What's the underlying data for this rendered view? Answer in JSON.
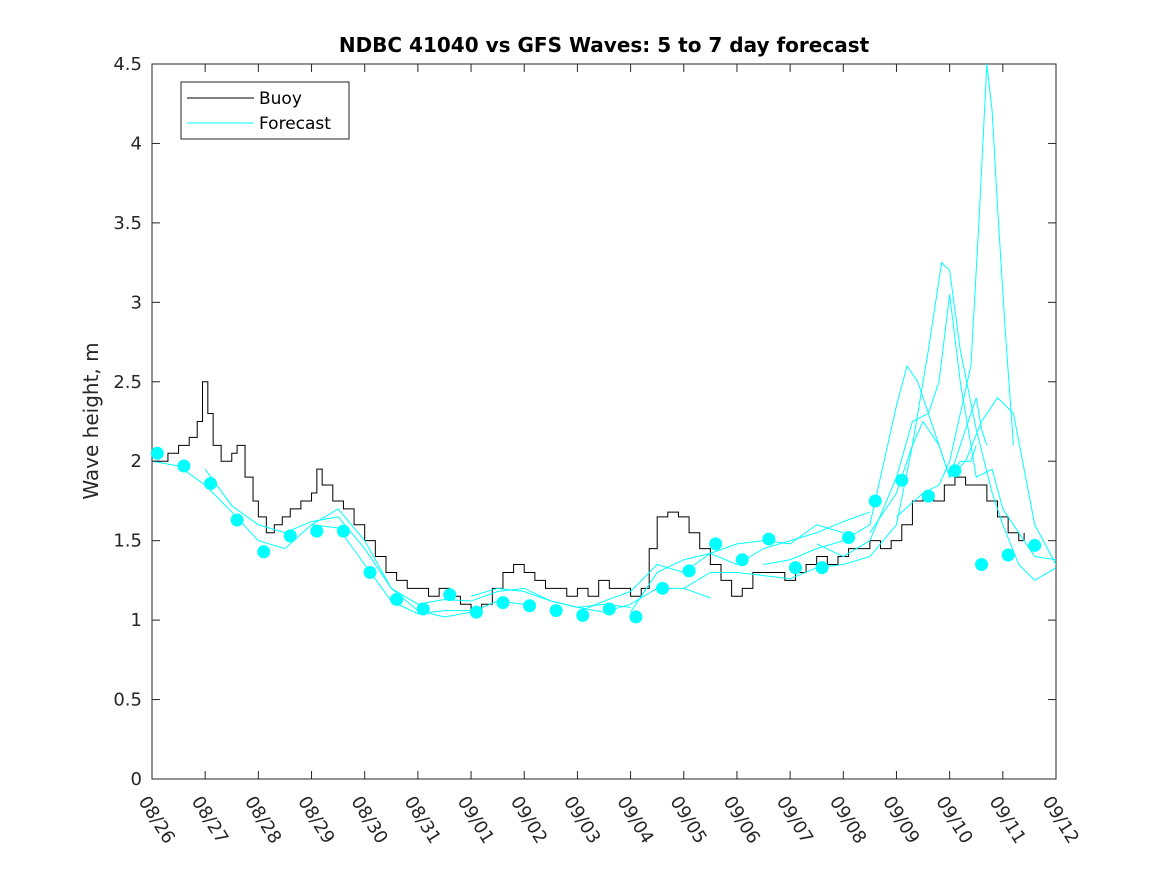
{
  "chart_data": {
    "type": "line",
    "title": "NDBC 41040 vs GFS Waves: 5 to 7 day forecast",
    "xlabel": "",
    "ylabel": "Wave height, m",
    "xlim": [
      0,
      17
    ],
    "ylim": [
      0,
      4.5
    ],
    "x_tick_labels": [
      "08/26",
      "08/27",
      "08/28",
      "08/29",
      "08/30",
      "08/31",
      "09/01",
      "09/02",
      "09/03",
      "09/04",
      "09/05",
      "09/06",
      "09/07",
      "09/08",
      "09/09",
      "09/10",
      "09/11",
      "09/12"
    ],
    "y_ticks": [
      0,
      0.5,
      1,
      1.5,
      2,
      2.5,
      3,
      3.5,
      4,
      4.5
    ],
    "y_tick_labels": [
      "0",
      "0.5",
      "1",
      "1.5",
      "2",
      "2.5",
      "3",
      "3.5",
      "4",
      "4.5"
    ],
    "legend": {
      "position": "top-left",
      "entries": [
        "Buoy",
        "Forecast"
      ]
    },
    "colors": {
      "buoy": "#000000",
      "forecast": "#00FFFF",
      "axis": "#262626"
    },
    "series": [
      {
        "name": "Buoy",
        "type": "line",
        "points": [
          [
            0,
            2.0
          ],
          [
            0.3,
            2.05
          ],
          [
            0.5,
            2.1
          ],
          [
            0.7,
            2.15
          ],
          [
            0.85,
            2.25
          ],
          [
            0.95,
            2.5
          ],
          [
            1.05,
            2.3
          ],
          [
            1.15,
            2.1
          ],
          [
            1.3,
            2.0
          ],
          [
            1.5,
            2.05
          ],
          [
            1.6,
            2.1
          ],
          [
            1.75,
            1.9
          ],
          [
            1.9,
            1.75
          ],
          [
            2.0,
            1.65
          ],
          [
            2.15,
            1.55
          ],
          [
            2.3,
            1.6
          ],
          [
            2.45,
            1.65
          ],
          [
            2.6,
            1.7
          ],
          [
            2.8,
            1.75
          ],
          [
            3.0,
            1.8
          ],
          [
            3.1,
            1.95
          ],
          [
            3.2,
            1.85
          ],
          [
            3.4,
            1.75
          ],
          [
            3.6,
            1.7
          ],
          [
            3.8,
            1.6
          ],
          [
            4.0,
            1.5
          ],
          [
            4.2,
            1.4
          ],
          [
            4.4,
            1.3
          ],
          [
            4.6,
            1.25
          ],
          [
            4.8,
            1.2
          ],
          [
            5.0,
            1.2
          ],
          [
            5.2,
            1.15
          ],
          [
            5.4,
            1.2
          ],
          [
            5.6,
            1.15
          ],
          [
            5.8,
            1.1
          ],
          [
            6.0,
            1.05
          ],
          [
            6.2,
            1.1
          ],
          [
            6.4,
            1.2
          ],
          [
            6.6,
            1.3
          ],
          [
            6.8,
            1.35
          ],
          [
            7.0,
            1.3
          ],
          [
            7.2,
            1.25
          ],
          [
            7.4,
            1.2
          ],
          [
            7.6,
            1.2
          ],
          [
            7.8,
            1.15
          ],
          [
            8.0,
            1.2
          ],
          [
            8.2,
            1.15
          ],
          [
            8.4,
            1.25
          ],
          [
            8.6,
            1.2
          ],
          [
            8.8,
            1.2
          ],
          [
            9.0,
            1.15
          ],
          [
            9.2,
            1.2
          ],
          [
            9.35,
            1.45
          ],
          [
            9.5,
            1.65
          ],
          [
            9.7,
            1.68
          ],
          [
            9.9,
            1.65
          ],
          [
            10.1,
            1.55
          ],
          [
            10.3,
            1.45
          ],
          [
            10.5,
            1.35
          ],
          [
            10.7,
            1.25
          ],
          [
            10.9,
            1.15
          ],
          [
            11.1,
            1.2
          ],
          [
            11.3,
            1.3
          ],
          [
            11.5,
            1.3
          ],
          [
            11.7,
            1.3
          ],
          [
            11.9,
            1.25
          ],
          [
            12.1,
            1.3
          ],
          [
            12.3,
            1.35
          ],
          [
            12.5,
            1.4
          ],
          [
            12.7,
            1.35
          ],
          [
            12.9,
            1.4
          ],
          [
            13.1,
            1.45
          ],
          [
            13.3,
            1.45
          ],
          [
            13.5,
            1.5
          ],
          [
            13.7,
            1.45
          ],
          [
            13.9,
            1.5
          ],
          [
            14.1,
            1.6
          ],
          [
            14.3,
            1.75
          ],
          [
            14.5,
            1.8
          ],
          [
            14.7,
            1.75
          ],
          [
            14.9,
            1.85
          ],
          [
            15.1,
            1.9
          ],
          [
            15.3,
            1.85
          ],
          [
            15.5,
            1.85
          ],
          [
            15.7,
            1.75
          ],
          [
            15.9,
            1.65
          ],
          [
            16.1,
            1.55
          ],
          [
            16.3,
            1.5
          ],
          [
            16.4,
            1.55
          ]
        ]
      },
      {
        "name": "Forecast",
        "type": "line",
        "points": [
          [
            0,
            2.0
          ],
          [
            0.5,
            1.97
          ],
          [
            1.0,
            1.85
          ],
          [
            1.5,
            1.68
          ],
          [
            2.0,
            1.5
          ],
          [
            2.5,
            1.45
          ],
          [
            3.0,
            1.6
          ],
          [
            3.5,
            1.58
          ],
          [
            4.0,
            1.35
          ],
          [
            4.5,
            1.12
          ],
          [
            5.0,
            1.04
          ],
          [
            5.5,
            1.06
          ],
          [
            6.0,
            1.06
          ]
        ]
      },
      {
        "name": "Forecast",
        "type": "line",
        "points": [
          [
            1.0,
            1.95
          ],
          [
            1.5,
            1.72
          ],
          [
            2.0,
            1.6
          ],
          [
            2.5,
            1.55
          ],
          [
            3.0,
            1.62
          ],
          [
            3.5,
            1.65
          ],
          [
            4.0,
            1.45
          ],
          [
            4.5,
            1.2
          ],
          [
            5.0,
            1.06
          ],
          [
            5.5,
            1.02
          ],
          [
            6.0,
            1.05
          ],
          [
            6.5,
            1.12
          ],
          [
            7.0,
            1.1
          ]
        ]
      },
      {
        "name": "Forecast",
        "type": "line",
        "points": [
          [
            3.0,
            1.6
          ],
          [
            3.5,
            1.7
          ],
          [
            4.0,
            1.5
          ],
          [
            4.5,
            1.2
          ],
          [
            5.0,
            1.1
          ],
          [
            5.5,
            1.13
          ],
          [
            6.0,
            1.12
          ],
          [
            6.5,
            1.18
          ],
          [
            7.0,
            1.2
          ],
          [
            7.5,
            1.12
          ],
          [
            8.0,
            1.08
          ],
          [
            8.5,
            1.1
          ],
          [
            9.0,
            1.08
          ]
        ]
      },
      {
        "name": "Forecast",
        "type": "line",
        "points": [
          [
            6.0,
            1.15
          ],
          [
            6.5,
            1.2
          ],
          [
            7.0,
            1.18
          ],
          [
            7.5,
            1.12
          ],
          [
            8.0,
            1.08
          ],
          [
            8.5,
            1.05
          ],
          [
            9.0,
            1.1
          ],
          [
            9.5,
            1.2
          ],
          [
            10.0,
            1.2
          ],
          [
            10.5,
            1.14
          ]
        ]
      },
      {
        "name": "Forecast",
        "type": "line",
        "points": [
          [
            8.0,
            1.05
          ],
          [
            8.5,
            1.12
          ],
          [
            9.0,
            1.18
          ],
          [
            9.5,
            1.35
          ],
          [
            10.0,
            1.3
          ],
          [
            10.5,
            1.42
          ],
          [
            11.0,
            1.48
          ],
          [
            11.5,
            1.5
          ],
          [
            12.0,
            1.48
          ],
          [
            12.5,
            1.6
          ],
          [
            13.0,
            1.55
          ]
        ]
      },
      {
        "name": "Forecast",
        "type": "line",
        "points": [
          [
            9.0,
            1.05
          ],
          [
            9.5,
            1.3
          ],
          [
            10.0,
            1.38
          ],
          [
            10.5,
            1.42
          ],
          [
            11.0,
            1.35
          ],
          [
            11.5,
            1.45
          ],
          [
            12.0,
            1.5
          ],
          [
            12.5,
            1.55
          ],
          [
            13.0,
            1.62
          ],
          [
            13.5,
            1.68
          ]
        ]
      },
      {
        "name": "Forecast",
        "type": "line",
        "points": [
          [
            10.0,
            1.2
          ],
          [
            10.5,
            1.3
          ],
          [
            11.0,
            1.3
          ],
          [
            11.5,
            1.28
          ],
          [
            12.0,
            1.26
          ],
          [
            12.5,
            1.33
          ],
          [
            13.0,
            1.35
          ],
          [
            13.5,
            1.4
          ],
          [
            14.0,
            1.6
          ],
          [
            14.3,
            2.1
          ],
          [
            14.5,
            2.25
          ],
          [
            14.8,
            2.1
          ],
          [
            15.0,
            1.9
          ],
          [
            15.2,
            2.0
          ],
          [
            15.4,
            2.0
          ],
          [
            15.5,
            2.1
          ]
        ]
      },
      {
        "name": "Forecast",
        "type": "line",
        "points": [
          [
            11.5,
            1.35
          ],
          [
            12.0,
            1.38
          ],
          [
            12.5,
            1.45
          ],
          [
            13.0,
            1.5
          ],
          [
            13.5,
            1.6
          ],
          [
            14.0,
            2.35
          ],
          [
            14.2,
            2.6
          ],
          [
            14.4,
            2.5
          ],
          [
            14.7,
            2.2
          ],
          [
            15.0,
            1.9
          ],
          [
            15.3,
            2.0
          ],
          [
            15.6,
            2.25
          ],
          [
            15.9,
            2.4
          ],
          [
            16.2,
            2.3
          ],
          [
            16.6,
            1.6
          ],
          [
            17.0,
            1.35
          ]
        ]
      },
      {
        "name": "Forecast",
        "type": "line",
        "points": [
          [
            12.5,
            1.48
          ],
          [
            13.0,
            1.4
          ],
          [
            13.5,
            1.5
          ],
          [
            14.0,
            1.9
          ],
          [
            14.3,
            2.25
          ],
          [
            14.6,
            2.3
          ],
          [
            14.8,
            2.5
          ],
          [
            15.0,
            3.05
          ],
          [
            15.2,
            2.5
          ],
          [
            15.5,
            1.9
          ],
          [
            15.8,
            1.95
          ],
          [
            16.0,
            1.7
          ],
          [
            16.3,
            1.55
          ],
          [
            16.6,
            1.4
          ],
          [
            17.0,
            1.38
          ]
        ]
      },
      {
        "name": "Forecast",
        "type": "line",
        "points": [
          [
            13.5,
            1.55
          ],
          [
            14.0,
            1.8
          ],
          [
            14.3,
            2.1
          ],
          [
            14.6,
            2.7
          ],
          [
            14.85,
            3.25
          ],
          [
            15.0,
            3.2
          ],
          [
            15.2,
            2.7
          ],
          [
            15.5,
            2.2
          ],
          [
            15.8,
            1.8
          ],
          [
            16.0,
            1.6
          ],
          [
            16.3,
            1.35
          ],
          [
            16.6,
            1.25
          ],
          [
            17.0,
            1.33
          ]
        ]
      },
      {
        "name": "Forecast",
        "type": "line",
        "points": [
          [
            14.0,
            1.65
          ],
          [
            14.5,
            1.8
          ],
          [
            14.8,
            1.85
          ],
          [
            15.0,
            2.0
          ],
          [
            15.2,
            2.3
          ],
          [
            15.4,
            2.6
          ],
          [
            15.55,
            3.5
          ],
          [
            15.7,
            4.5
          ],
          [
            15.8,
            4.2
          ],
          [
            15.9,
            3.6
          ],
          [
            16.05,
            2.8
          ],
          [
            16.2,
            2.1
          ]
        ]
      },
      {
        "name": "Forecast",
        "type": "line",
        "points": [
          [
            15.0,
            1.9
          ],
          [
            15.3,
            2.2
          ],
          [
            15.5,
            2.4
          ],
          [
            15.6,
            2.2
          ],
          [
            15.7,
            2.1
          ]
        ]
      },
      {
        "name": "Forecast markers",
        "type": "scatter",
        "points": [
          [
            0.1,
            2.05
          ],
          [
            0.6,
            1.97
          ],
          [
            1.1,
            1.86
          ],
          [
            1.6,
            1.63
          ],
          [
            2.1,
            1.43
          ],
          [
            2.6,
            1.53
          ],
          [
            3.1,
            1.56
          ],
          [
            3.6,
            1.56
          ],
          [
            4.1,
            1.3
          ],
          [
            4.6,
            1.13
          ],
          [
            5.1,
            1.07
          ],
          [
            5.6,
            1.16
          ],
          [
            6.1,
            1.05
          ],
          [
            6.6,
            1.11
          ],
          [
            7.1,
            1.09
          ],
          [
            7.6,
            1.06
          ],
          [
            8.1,
            1.03
          ],
          [
            8.6,
            1.07
          ],
          [
            9.1,
            1.02
          ],
          [
            9.6,
            1.2
          ],
          [
            10.1,
            1.31
          ],
          [
            10.6,
            1.48
          ],
          [
            11.1,
            1.38
          ],
          [
            11.6,
            1.51
          ],
          [
            12.1,
            1.33
          ],
          [
            12.6,
            1.33
          ],
          [
            13.1,
            1.52
          ],
          [
            13.6,
            1.75
          ],
          [
            14.1,
            1.88
          ],
          [
            14.6,
            1.78
          ],
          [
            15.1,
            1.94
          ],
          [
            15.6,
            1.35
          ],
          [
            16.1,
            1.41
          ],
          [
            16.6,
            1.47
          ]
        ]
      }
    ]
  }
}
